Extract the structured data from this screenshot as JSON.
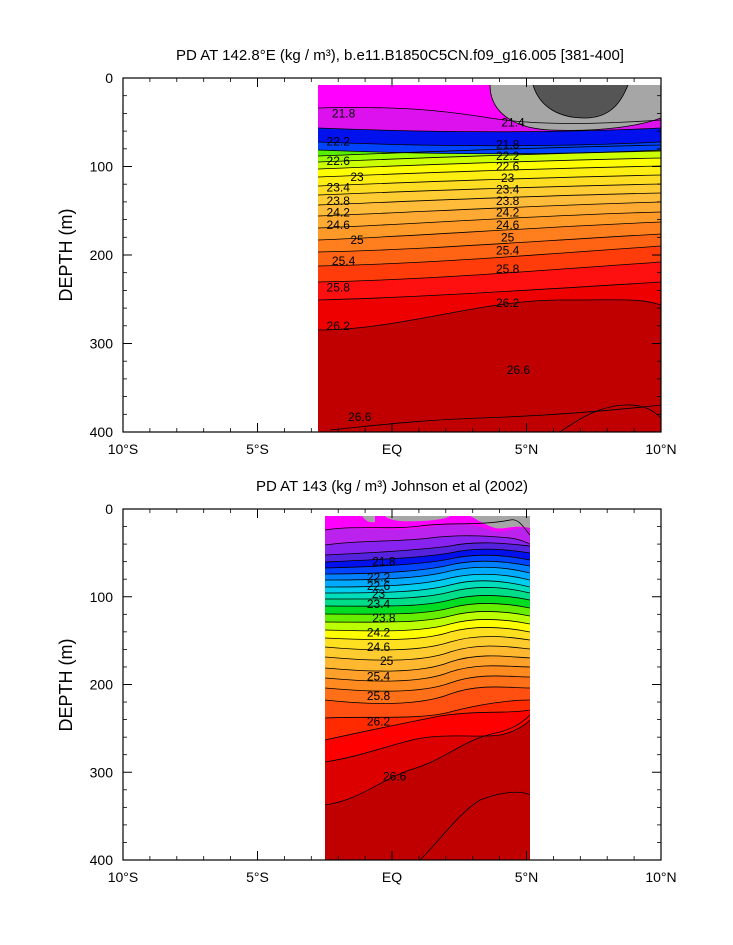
{
  "chart_data": [
    {
      "type": "contour",
      "title": "PD AT 142.8°E (kg / m³), b.e11.B1850C5CN.f09_g16.005 [381-400]",
      "ylabel": "DEPTH (m)",
      "xlim": [
        -10,
        10
      ],
      "ylim": [
        0,
        400
      ],
      "y_inverted": true,
      "x_ticks": [
        -10,
        -5,
        0,
        5,
        10
      ],
      "x_tick_labels": [
        "10°S",
        "5°S",
        "EQ",
        "5°N",
        "10°N"
      ],
      "y_ticks": [
        0,
        100,
        200,
        300,
        400
      ],
      "y_tick_labels": [
        "0",
        "100",
        "200",
        "300",
        "400"
      ],
      "data_x_range": [
        -3.2,
        10
      ],
      "contour_interval": 0.2,
      "contour_labels": [
        {
          "text": "21.4",
          "x": 4.5,
          "y": 50
        },
        {
          "text": "21.8",
          "x": -1.8,
          "y": 40
        },
        {
          "text": "21.8",
          "x": 4.3,
          "y": 75
        },
        {
          "text": "22.2",
          "x": -2.0,
          "y": 72
        },
        {
          "text": "22.2",
          "x": 4.3,
          "y": 88
        },
        {
          "text": "22.6",
          "x": -2.0,
          "y": 94
        },
        {
          "text": "22.6",
          "x": 4.3,
          "y": 100
        },
        {
          "text": "23",
          "x": -1.3,
          "y": 112
        },
        {
          "text": "23",
          "x": 4.3,
          "y": 113
        },
        {
          "text": "23.4",
          "x": -2.0,
          "y": 124
        },
        {
          "text": "23.4",
          "x": 4.3,
          "y": 126
        },
        {
          "text": "23.8",
          "x": -2.0,
          "y": 139
        },
        {
          "text": "23.8",
          "x": 4.3,
          "y": 139
        },
        {
          "text": "24.2",
          "x": -2.0,
          "y": 152
        },
        {
          "text": "24.2",
          "x": 4.3,
          "y": 152
        },
        {
          "text": "24.6",
          "x": -2.0,
          "y": 166
        },
        {
          "text": "24.6",
          "x": 4.3,
          "y": 166
        },
        {
          "text": "25",
          "x": -1.3,
          "y": 183
        },
        {
          "text": "25",
          "x": 4.3,
          "y": 180
        },
        {
          "text": "25.4",
          "x": -1.8,
          "y": 207
        },
        {
          "text": "25.4",
          "x": 4.3,
          "y": 195
        },
        {
          "text": "25.8",
          "x": -2.0,
          "y": 237
        },
        {
          "text": "25.8",
          "x": 4.3,
          "y": 216
        },
        {
          "text": "26.2",
          "x": -2.0,
          "y": 280
        },
        {
          "text": "26.2",
          "x": 4.3,
          "y": 254
        },
        {
          "text": "26.6",
          "x": 4.7,
          "y": 330
        },
        {
          "text": "26.6",
          "x": -1.2,
          "y": 383
        }
      ]
    },
    {
      "type": "contour",
      "title": "PD AT 143 (kg / m³) Johnson et al (2002)",
      "ylabel": "DEPTH (m)",
      "xlim": [
        -10,
        10
      ],
      "ylim": [
        0,
        400
      ],
      "y_inverted": true,
      "x_ticks": [
        -10,
        -5,
        0,
        5,
        10
      ],
      "x_tick_labels": [
        "10°S",
        "5°S",
        "EQ",
        "5°N",
        "10°N"
      ],
      "y_ticks": [
        0,
        100,
        200,
        300,
        400
      ],
      "y_tick_labels": [
        "0",
        "100",
        "200",
        "300",
        "400"
      ],
      "data_x_range": [
        -2.8,
        5
      ],
      "contour_interval": 0.2,
      "contour_labels": [
        {
          "text": "21.8",
          "x": -0.3,
          "y": 60
        },
        {
          "text": "22.2",
          "x": -0.5,
          "y": 78
        },
        {
          "text": "22.6",
          "x": -0.5,
          "y": 88
        },
        {
          "text": "23",
          "x": -0.5,
          "y": 97
        },
        {
          "text": "23.4",
          "x": -0.5,
          "y": 108
        },
        {
          "text": "23.8",
          "x": -0.3,
          "y": 124
        },
        {
          "text": "24.2",
          "x": -0.5,
          "y": 141
        },
        {
          "text": "24.6",
          "x": -0.5,
          "y": 157
        },
        {
          "text": "25",
          "x": -0.2,
          "y": 173
        },
        {
          "text": "25.4",
          "x": -0.5,
          "y": 191
        },
        {
          "text": "25.8",
          "x": -0.5,
          "y": 213
        },
        {
          "text": "26.2",
          "x": -0.5,
          "y": 242
        },
        {
          "text": "26.6",
          "x": 0.1,
          "y": 305
        }
      ]
    }
  ]
}
